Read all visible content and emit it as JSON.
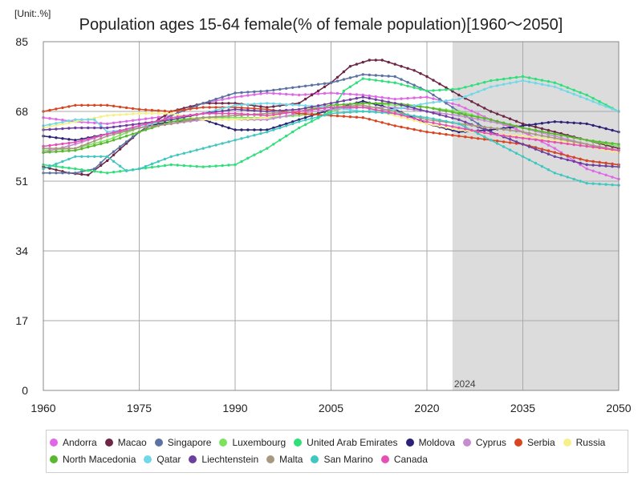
{
  "unit_label": "[Unit:.%]",
  "chart_data": {
    "type": "line",
    "title": "Population ages 15-64 female(% of female population)[1960～2050]",
    "xlabel": "",
    "ylabel": "",
    "xlim": [
      1960,
      2050
    ],
    "ylim": [
      0,
      85
    ],
    "x_ticks": [
      1960,
      1975,
      1990,
      2005,
      2020,
      2035,
      2050
    ],
    "y_ticks": [
      0,
      17,
      34,
      51,
      68,
      85
    ],
    "grid": true,
    "projection_shading": {
      "from": 2024,
      "to": 2050,
      "label": "2024",
      "color": "#dcdcdc"
    },
    "legend_position": "bottom",
    "series": [
      {
        "name": "Andorra",
        "color": "#e067e8",
        "points": [
          [
            1960,
            66.5
          ],
          [
            1965,
            65.5
          ],
          [
            1970,
            65
          ],
          [
            1975,
            66
          ],
          [
            1980,
            67
          ],
          [
            1985,
            70
          ],
          [
            1990,
            71.5
          ],
          [
            1995,
            72.5
          ],
          [
            2000,
            72
          ],
          [
            2005,
            72.5
          ],
          [
            2010,
            72
          ],
          [
            2015,
            71
          ],
          [
            2020,
            71.5
          ],
          [
            2025,
            69.5
          ],
          [
            2030,
            66
          ],
          [
            2035,
            63
          ],
          [
            2040,
            59
          ],
          [
            2045,
            54
          ],
          [
            2050,
            51.5
          ]
        ]
      },
      {
        "name": "Macao",
        "color": "#6d2645",
        "points": [
          [
            1960,
            54.5
          ],
          [
            1964,
            53
          ],
          [
            1967,
            52.5
          ],
          [
            1970,
            56
          ],
          [
            1975,
            63
          ],
          [
            1980,
            68
          ],
          [
            1985,
            70
          ],
          [
            1990,
            70
          ],
          [
            1995,
            69
          ],
          [
            2000,
            70
          ],
          [
            2005,
            75
          ],
          [
            2008,
            79
          ],
          [
            2011,
            80.5
          ],
          [
            2013,
            80.5
          ],
          [
            2015,
            79.5
          ],
          [
            2018,
            78
          ],
          [
            2020,
            76.5
          ],
          [
            2025,
            72
          ],
          [
            2030,
            68
          ],
          [
            2035,
            65
          ],
          [
            2040,
            63
          ],
          [
            2045,
            61
          ],
          [
            2050,
            59
          ]
        ]
      },
      {
        "name": "Singapore",
        "color": "#5c72a3",
        "points": [
          [
            1960,
            53
          ],
          [
            1965,
            53
          ],
          [
            1968,
            54
          ],
          [
            1970,
            57
          ],
          [
            1975,
            63
          ],
          [
            1980,
            67
          ],
          [
            1985,
            70
          ],
          [
            1990,
            72.5
          ],
          [
            1995,
            73
          ],
          [
            2000,
            74
          ],
          [
            2005,
            75
          ],
          [
            2010,
            77
          ],
          [
            2015,
            76.5
          ],
          [
            2020,
            73
          ],
          [
            2025,
            68
          ],
          [
            2030,
            63
          ],
          [
            2035,
            60
          ],
          [
            2040,
            58
          ],
          [
            2045,
            56
          ],
          [
            2050,
            55
          ]
        ]
      },
      {
        "name": "Luxembourg",
        "color": "#7de35f",
        "points": [
          [
            1960,
            58.5
          ],
          [
            1965,
            59
          ],
          [
            1970,
            61
          ],
          [
            1975,
            64
          ],
          [
            1980,
            66
          ],
          [
            1985,
            66.5
          ],
          [
            1990,
            66.5
          ],
          [
            1995,
            66.5
          ],
          [
            2000,
            67
          ],
          [
            2005,
            68
          ],
          [
            2010,
            70
          ],
          [
            2015,
            69.5
          ],
          [
            2020,
            69
          ],
          [
            2025,
            68
          ],
          [
            2030,
            66
          ],
          [
            2035,
            64
          ],
          [
            2040,
            62.5
          ],
          [
            2045,
            61
          ],
          [
            2050,
            59.5
          ]
        ]
      },
      {
        "name": "United Arab Emirates",
        "color": "#2fe07a",
        "points": [
          [
            1960,
            55
          ],
          [
            1965,
            54
          ],
          [
            1970,
            53
          ],
          [
            1975,
            54
          ],
          [
            1980,
            55
          ],
          [
            1985,
            54.5
          ],
          [
            1990,
            55
          ],
          [
            1995,
            59
          ],
          [
            2000,
            64
          ],
          [
            2005,
            68
          ],
          [
            2007,
            73
          ],
          [
            2010,
            76
          ],
          [
            2015,
            75
          ],
          [
            2020,
            73
          ],
          [
            2025,
            73.5
          ],
          [
            2030,
            75.5
          ],
          [
            2035,
            76.5
          ],
          [
            2040,
            75
          ],
          [
            2045,
            72
          ],
          [
            2050,
            68
          ]
        ]
      },
      {
        "name": "Moldova",
        "color": "#2b2277",
        "points": [
          [
            1960,
            62
          ],
          [
            1965,
            61
          ],
          [
            1970,
            62.5
          ],
          [
            1975,
            64
          ],
          [
            1980,
            65.5
          ],
          [
            1985,
            66
          ],
          [
            1990,
            63.5
          ],
          [
            1995,
            63.5
          ],
          [
            2000,
            66
          ],
          [
            2005,
            68.5
          ],
          [
            2010,
            70.5
          ],
          [
            2015,
            68.5
          ],
          [
            2020,
            65
          ],
          [
            2025,
            63
          ],
          [
            2030,
            63.5
          ],
          [
            2035,
            64.5
          ],
          [
            2040,
            65.5
          ],
          [
            2045,
            65
          ],
          [
            2050,
            63
          ]
        ]
      },
      {
        "name": "Cyprus",
        "color": "#c58cd0",
        "points": [
          [
            1960,
            58
          ],
          [
            1965,
            60
          ],
          [
            1970,
            62.5
          ],
          [
            1975,
            64
          ],
          [
            1980,
            65
          ],
          [
            1985,
            66
          ],
          [
            1990,
            66
          ],
          [
            1995,
            66
          ],
          [
            2000,
            67.5
          ],
          [
            2005,
            68.5
          ],
          [
            2010,
            69
          ],
          [
            2015,
            69
          ],
          [
            2020,
            68
          ],
          [
            2025,
            67
          ],
          [
            2030,
            65.5
          ],
          [
            2035,
            64
          ],
          [
            2040,
            62
          ],
          [
            2045,
            60
          ],
          [
            2050,
            58
          ]
        ]
      },
      {
        "name": "Serbia",
        "color": "#d8451f",
        "points": [
          [
            1960,
            68
          ],
          [
            1965,
            69.5
          ],
          [
            1970,
            69.5
          ],
          [
            1975,
            68.5
          ],
          [
            1980,
            68
          ],
          [
            1985,
            69
          ],
          [
            1990,
            69
          ],
          [
            1995,
            68.5
          ],
          [
            2000,
            67.5
          ],
          [
            2005,
            67
          ],
          [
            2010,
            66.5
          ],
          [
            2015,
            64.5
          ],
          [
            2020,
            63
          ],
          [
            2025,
            62
          ],
          [
            2030,
            61
          ],
          [
            2035,
            60
          ],
          [
            2040,
            58
          ],
          [
            2045,
            56
          ],
          [
            2050,
            55
          ]
        ]
      },
      {
        "name": "Russia",
        "color": "#f5f088",
        "points": [
          [
            1960,
            64
          ],
          [
            1965,
            65.5
          ],
          [
            1970,
            67
          ],
          [
            1975,
            67.5
          ],
          [
            1980,
            67.5
          ],
          [
            1985,
            66
          ],
          [
            1990,
            66
          ],
          [
            1995,
            66.5
          ],
          [
            2000,
            68.5
          ],
          [
            2005,
            69.5
          ],
          [
            2010,
            69
          ],
          [
            2015,
            67
          ],
          [
            2020,
            65
          ],
          [
            2025,
            63.5
          ],
          [
            2030,
            62.5
          ],
          [
            2035,
            62
          ],
          [
            2040,
            61
          ],
          [
            2045,
            59.5
          ],
          [
            2050,
            58
          ]
        ]
      },
      {
        "name": "North Macedonia",
        "color": "#59b82d",
        "points": [
          [
            1960,
            58
          ],
          [
            1965,
            58.5
          ],
          [
            1970,
            60.5
          ],
          [
            1975,
            63
          ],
          [
            1980,
            65.5
          ],
          [
            1985,
            66.5
          ],
          [
            1990,
            67
          ],
          [
            1995,
            67.5
          ],
          [
            2000,
            68
          ],
          [
            2005,
            69.5
          ],
          [
            2010,
            70
          ],
          [
            2015,
            70
          ],
          [
            2020,
            69
          ],
          [
            2025,
            67.5
          ],
          [
            2030,
            66
          ],
          [
            2035,
            64
          ],
          [
            2040,
            62.5
          ],
          [
            2045,
            61
          ],
          [
            2050,
            60
          ]
        ]
      },
      {
        "name": "Qatar",
        "color": "#70d8e8",
        "points": [
          [
            1960,
            64.5
          ],
          [
            1965,
            66
          ],
          [
            1968,
            66
          ],
          [
            1970,
            63
          ],
          [
            1975,
            64
          ],
          [
            1980,
            66.5
          ],
          [
            1985,
            67.5
          ],
          [
            1990,
            69.5
          ],
          [
            1995,
            70
          ],
          [
            2000,
            69.5
          ],
          [
            2005,
            69
          ],
          [
            2010,
            68
          ],
          [
            2015,
            68.5
          ],
          [
            2020,
            70
          ],
          [
            2025,
            71
          ],
          [
            2030,
            74
          ],
          [
            2035,
            75.5
          ],
          [
            2040,
            74
          ],
          [
            2045,
            71
          ],
          [
            2050,
            68
          ]
        ]
      },
      {
        "name": "Liechtenstein",
        "color": "#6c3fa0",
        "points": [
          [
            1960,
            63.5
          ],
          [
            1965,
            64
          ],
          [
            1970,
            64
          ],
          [
            1975,
            65
          ],
          [
            1980,
            66
          ],
          [
            1985,
            67.5
          ],
          [
            1990,
            68.5
          ],
          [
            1995,
            68
          ],
          [
            2000,
            68.5
          ],
          [
            2005,
            70
          ],
          [
            2010,
            71.5
          ],
          [
            2015,
            70
          ],
          [
            2020,
            68
          ],
          [
            2025,
            66
          ],
          [
            2030,
            63
          ],
          [
            2035,
            60
          ],
          [
            2040,
            57
          ],
          [
            2045,
            55
          ],
          [
            2050,
            54.5
          ]
        ]
      },
      {
        "name": "Malta",
        "color": "#a89880",
        "points": [
          [
            1960,
            59
          ],
          [
            1965,
            59
          ],
          [
            1970,
            62
          ],
          [
            1975,
            64
          ],
          [
            1980,
            65
          ],
          [
            1985,
            66.5
          ],
          [
            1990,
            67
          ],
          [
            1995,
            67.5
          ],
          [
            2000,
            68
          ],
          [
            2005,
            69
          ],
          [
            2010,
            69.5
          ],
          [
            2015,
            68
          ],
          [
            2020,
            66
          ],
          [
            2025,
            65
          ],
          [
            2030,
            64
          ],
          [
            2035,
            63
          ],
          [
            2040,
            61.5
          ],
          [
            2045,
            60
          ],
          [
            2050,
            58.5
          ]
        ]
      },
      {
        "name": "San Marino",
        "color": "#40c8c0",
        "points": [
          [
            1960,
            54
          ],
          [
            1965,
            57
          ],
          [
            1970,
            57
          ],
          [
            1973,
            53.5
          ],
          [
            1975,
            54
          ],
          [
            1980,
            57
          ],
          [
            1985,
            59
          ],
          [
            1990,
            61
          ],
          [
            1995,
            63
          ],
          [
            2000,
            65.5
          ],
          [
            2005,
            67.5
          ],
          [
            2010,
            68
          ],
          [
            2015,
            67.5
          ],
          [
            2020,
            66.5
          ],
          [
            2025,
            65
          ],
          [
            2030,
            61
          ],
          [
            2035,
            57
          ],
          [
            2040,
            53
          ],
          [
            2045,
            50.5
          ],
          [
            2050,
            50
          ]
        ]
      },
      {
        "name": "Canada",
        "color": "#e64fb5",
        "points": [
          [
            1960,
            59.5
          ],
          [
            1965,
            60.5
          ],
          [
            1970,
            62.5
          ],
          [
            1975,
            64.5
          ],
          [
            1980,
            66.5
          ],
          [
            1985,
            67.5
          ],
          [
            1990,
            67.5
          ],
          [
            1995,
            67
          ],
          [
            2000,
            68
          ],
          [
            2005,
            69
          ],
          [
            2010,
            69
          ],
          [
            2015,
            67.5
          ],
          [
            2020,
            65.5
          ],
          [
            2025,
            64
          ],
          [
            2030,
            62.5
          ],
          [
            2035,
            61.5
          ],
          [
            2040,
            60.5
          ],
          [
            2045,
            59.5
          ],
          [
            2050,
            58.5
          ]
        ]
      }
    ]
  }
}
